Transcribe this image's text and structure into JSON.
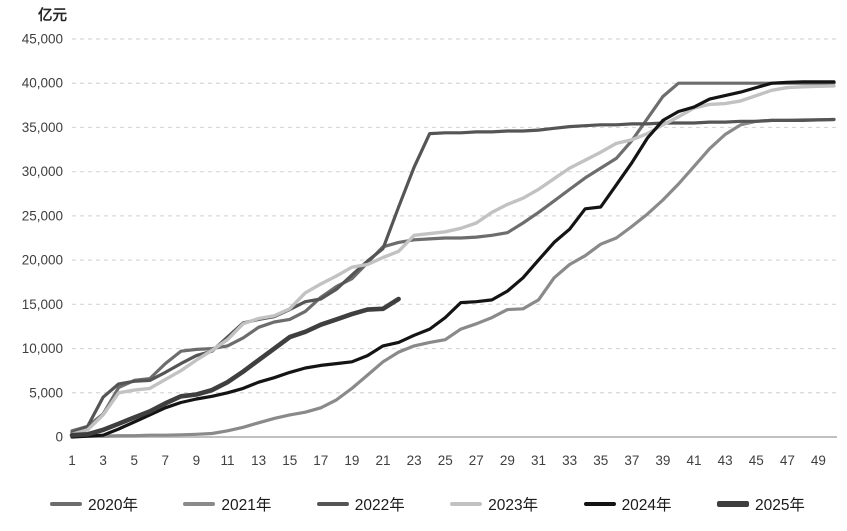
{
  "title": "亿元",
  "chart_data": {
    "type": "line",
    "ylabel": "亿元",
    "ylim": [
      0,
      45000
    ],
    "ytick_step": 5000,
    "y_tick_labels": [
      "0",
      "5,000",
      "10,000",
      "15,000",
      "20,000",
      "25,000",
      "30,000",
      "35,000",
      "40,000",
      "45,000"
    ],
    "x_tick_labels": [
      "1",
      "3",
      "5",
      "7",
      "9",
      "11",
      "13",
      "15",
      "17",
      "19",
      "21",
      "23",
      "25",
      "27",
      "29",
      "31",
      "33",
      "35",
      "37",
      "39",
      "41",
      "43",
      "45",
      "47",
      "49"
    ],
    "x_range": [
      1,
      50
    ],
    "grid": "horizontal-dashed",
    "legend_position": "bottom",
    "axis_color": "#c0c0c0",
    "grid_color": "#d8d8d8",
    "series": [
      {
        "name": "2020年",
        "color": "#6d6d6d",
        "width": 3.2,
        "values": [
          700,
          1200,
          2600,
          5600,
          6400,
          6600,
          8300,
          9700,
          9900,
          10000,
          10300,
          11200,
          12400,
          13000,
          13300,
          14200,
          15800,
          17000,
          17900,
          19700,
          21500,
          22000,
          22300,
          22400,
          22500,
          22500,
          22600,
          22800,
          23100,
          24200,
          25400,
          26700,
          28000,
          29300,
          30400,
          31500,
          33500,
          36000,
          38500,
          40000,
          40000,
          40000,
          40000,
          40000,
          40000,
          40000,
          40000,
          40000,
          40000,
          40050
        ]
      },
      {
        "name": "2021年",
        "color": "#8a8a8a",
        "width": 3.2,
        "values": [
          100,
          100,
          100,
          150,
          150,
          200,
          200,
          250,
          300,
          400,
          700,
          1100,
          1600,
          2100,
          2500,
          2800,
          3300,
          4200,
          5500,
          7000,
          8500,
          9600,
          10300,
          10700,
          11000,
          12200,
          12800,
          13500,
          14400,
          14500,
          15500,
          18000,
          19500,
          20500,
          21800,
          22500,
          23800,
          25200,
          26800,
          28600,
          30600,
          32600,
          34200,
          35300,
          35700,
          35800,
          35800,
          35850,
          35850,
          35900
        ]
      },
      {
        "name": "2022年",
        "color": "#555555",
        "width": 3.2,
        "values": [
          500,
          1200,
          4500,
          6000,
          6300,
          6400,
          7300,
          8300,
          9200,
          9700,
          11300,
          12900,
          13300,
          13600,
          14400,
          15300,
          15600,
          16700,
          18300,
          19900,
          21300,
          26000,
          30500,
          34300,
          34400,
          34400,
          34500,
          34500,
          34600,
          34600,
          34700,
          34900,
          35100,
          35200,
          35300,
          35300,
          35400,
          35400,
          35500,
          35500,
          35500,
          35600,
          35600,
          35700,
          35700,
          35800,
          35800,
          35800,
          35850,
          35900
        ]
      },
      {
        "name": "2023年",
        "color": "#c2c2c2",
        "width": 3.4,
        "values": [
          300,
          800,
          2500,
          5000,
          5300,
          5500,
          6500,
          7500,
          8700,
          9800,
          11000,
          12800,
          13400,
          13700,
          14500,
          16300,
          17300,
          18200,
          19200,
          19500,
          20300,
          21000,
          22800,
          23000,
          23200,
          23600,
          24200,
          25400,
          26300,
          27000,
          28000,
          29200,
          30400,
          31300,
          32200,
          33200,
          33600,
          34300,
          35300,
          36200,
          37200,
          37600,
          37700,
          38000,
          38600,
          39200,
          39500,
          39600,
          39650,
          39700
        ]
      },
      {
        "name": "2024年",
        "color": "#141414",
        "width": 3.2,
        "values": [
          0,
          100,
          200,
          900,
          1700,
          2500,
          3300,
          3900,
          4300,
          4600,
          5000,
          5500,
          6200,
          6700,
          7300,
          7800,
          8100,
          8300,
          8500,
          9200,
          10300,
          10700,
          11500,
          12200,
          13500,
          15200,
          15300,
          15500,
          16500,
          18000,
          20000,
          22000,
          23500,
          25800,
          26000,
          28500,
          31000,
          33800,
          35800,
          36800,
          37300,
          38200,
          38600,
          39000,
          39500,
          40000,
          40100,
          40150,
          40150,
          40150
        ]
      },
      {
        "name": "2025年",
        "color": "#3f3f3f",
        "width": 4.6,
        "values": [
          200,
          300,
          800,
          1500,
          2200,
          2900,
          3800,
          4600,
          4800,
          5300,
          6200,
          7400,
          8700,
          10000,
          11300,
          11900,
          12700,
          13300,
          13900,
          14400,
          14500,
          15600
        ]
      }
    ]
  }
}
